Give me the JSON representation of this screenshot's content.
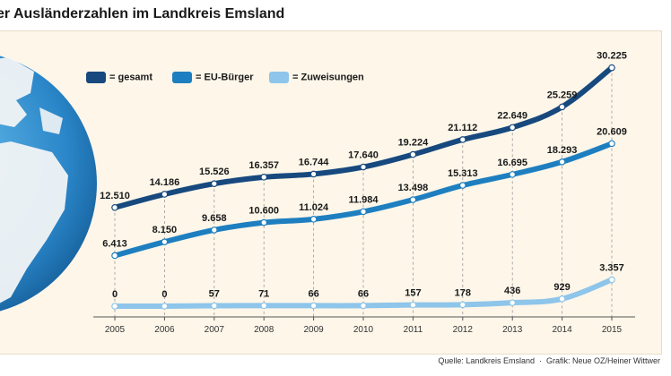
{
  "header": {
    "title": "er Ausländerzahlen im Landkreis Emsland"
  },
  "chart_data": {
    "type": "line",
    "title": "Ausländerzahlen im Landkreis Emsland",
    "categories": [
      "2005",
      "2006",
      "2007",
      "2008",
      "2009",
      "2010",
      "2011",
      "2012",
      "2013",
      "2014",
      "2015"
    ],
    "series": [
      {
        "name": "gesamt",
        "legend_label": "= gesamt",
        "color": "#17497e",
        "values": [
          12510,
          14186,
          15526,
          16357,
          16744,
          17640,
          19224,
          21112,
          22649,
          25259,
          30225
        ],
        "labels": [
          "12.510",
          "14.186",
          "15.526",
          "16.357",
          "16.744",
          "17.640",
          "19.224",
          "21.112",
          "22.649",
          "25.259",
          "30.225"
        ]
      },
      {
        "name": "EU-Bürger",
        "legend_label": "= EU-Bürger",
        "color": "#1e7fc0",
        "values": [
          6413,
          8150,
          9658,
          10600,
          11024,
          11984,
          13498,
          15313,
          16695,
          18293,
          20609
        ],
        "labels": [
          "6.413",
          "8.150",
          "9.658",
          "10.600",
          "11.024",
          "11.984",
          "13.498",
          "15.313",
          "16.695",
          "18.293",
          "20.609"
        ]
      },
      {
        "name": "Zuweisungen",
        "legend_label": "= Zuweisungen",
        "color": "#8ec5ea",
        "values": [
          0,
          0,
          57,
          71,
          66,
          66,
          157,
          178,
          436,
          929,
          3357
        ],
        "labels": [
          "0",
          "0",
          "57",
          "71",
          "66",
          "66",
          "157",
          "178",
          "436",
          "929",
          "3.357"
        ]
      }
    ],
    "ylim": [
      0,
      32000
    ]
  },
  "footer": {
    "source": "Quelle: Landkreis Emsland",
    "separator": "·",
    "credit": "Grafik: Neue OZ/Heiner Wittwer"
  }
}
